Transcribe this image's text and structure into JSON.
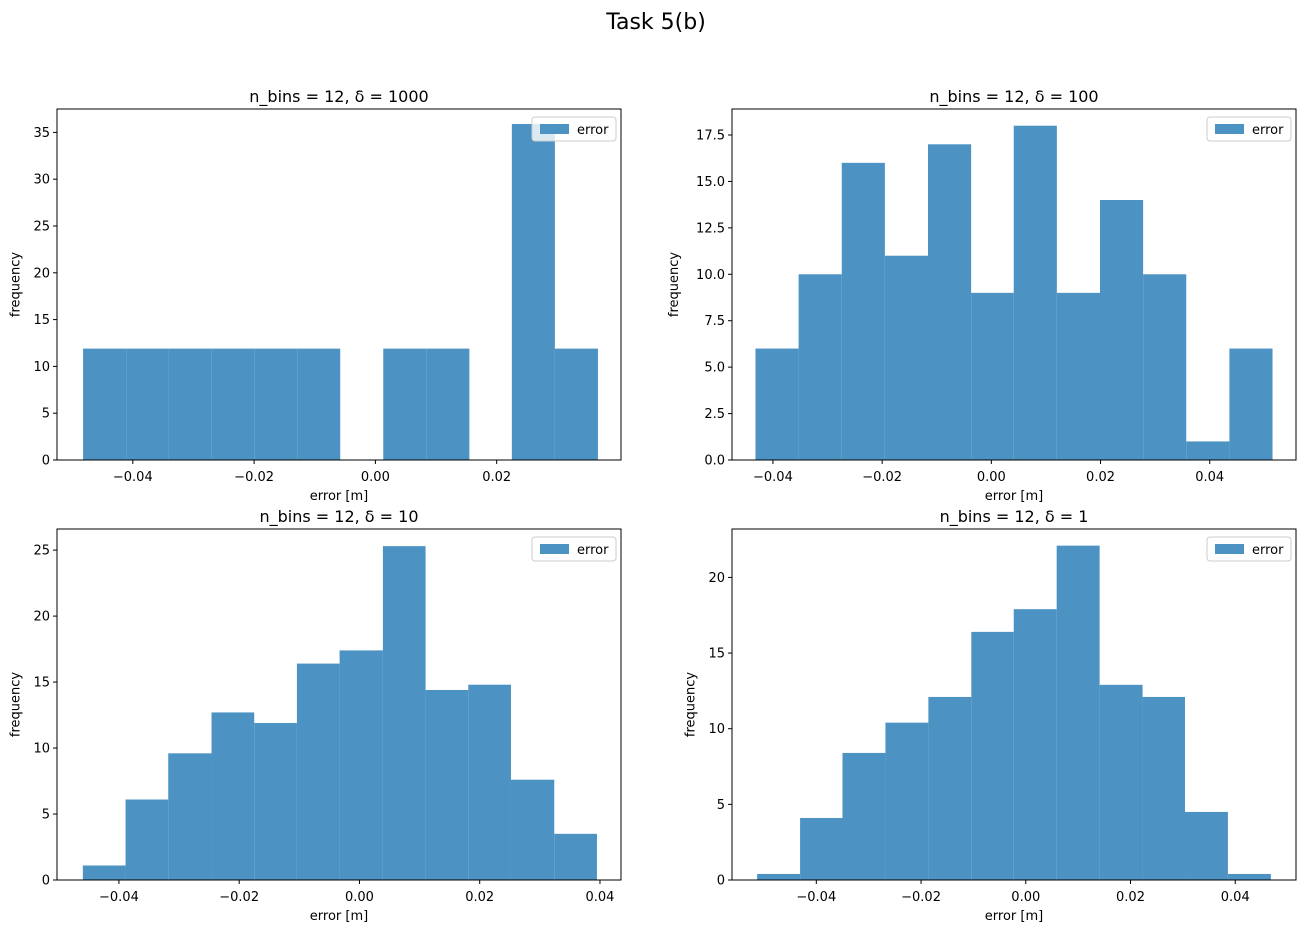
{
  "figure_title": "Task 5(b)",
  "colors": {
    "bar": "#4C93C3",
    "axis": "#000000",
    "legend_border": "#cccccc"
  },
  "chart_data": [
    {
      "type": "bar",
      "title": "n_bins = 12,  δ = 1000",
      "xlabel": "error [m]",
      "ylabel": "frequency",
      "legend": [
        "error"
      ],
      "legend_placement": "upper-right",
      "grid": false,
      "xlim": [
        -0.0525,
        0.0405
      ],
      "ylim": [
        0,
        37.5
      ],
      "xticks": [
        -0.04,
        -0.02,
        0.0,
        0.02
      ],
      "xticklabels": [
        "−0.04",
        "−0.02",
        "0.00",
        "0.02"
      ],
      "yticks": [
        0,
        5,
        10,
        15,
        20,
        25,
        30,
        35
      ],
      "yticklabels": [
        "0",
        "5",
        "10",
        "15",
        "20",
        "25",
        "30",
        "35"
      ],
      "bin_edges": [
        -0.0482,
        -0.0411,
        -0.0341,
        -0.027,
        -0.0199,
        -0.0128,
        -0.0058,
        0.0013,
        0.0084,
        0.0155,
        0.0225,
        0.0296,
        0.0367
      ],
      "values": [
        11.9,
        11.9,
        11.9,
        11.9,
        11.9,
        11.9,
        0,
        11.9,
        11.9,
        0,
        35.9,
        11.9
      ]
    },
    {
      "type": "bar",
      "title": "n_bins = 12,  δ = 100",
      "xlabel": "error [m]",
      "ylabel": "frequency",
      "legend": [
        "error"
      ],
      "legend_placement": "upper-right",
      "grid": false,
      "xlim": [
        -0.0475,
        0.0558
      ],
      "ylim": [
        0,
        18.9
      ],
      "xticks": [
        -0.04,
        -0.02,
        0.0,
        0.02,
        0.04
      ],
      "xticklabels": [
        "−0.04",
        "−0.02",
        "0.00",
        "0.02",
        "0.04"
      ],
      "yticks": [
        0,
        2.5,
        5.0,
        7.5,
        10.0,
        12.5,
        15.0,
        17.5
      ],
      "yticklabels": [
        "0.0",
        "2.5",
        "5.0",
        "7.5",
        "10.0",
        "12.5",
        "15.0",
        "17.5"
      ],
      "bin_edges": [
        -0.0432,
        -0.0353,
        -0.0274,
        -0.0195,
        -0.0116,
        -0.0037,
        0.0041,
        0.012,
        0.0199,
        0.0278,
        0.0357,
        0.0436,
        0.0515
      ],
      "values": [
        6,
        10,
        16,
        11,
        17,
        9,
        18,
        9,
        14,
        10,
        1,
        6
      ]
    },
    {
      "type": "bar",
      "title": "n_bins = 12,  δ = 10",
      "xlabel": "error [m]",
      "ylabel": "frequency",
      "legend": [
        "error"
      ],
      "legend_placement": "upper-right",
      "grid": false,
      "xlim": [
        -0.0503,
        0.0435
      ],
      "ylim": [
        0,
        26.6
      ],
      "xticks": [
        -0.04,
        -0.02,
        0.0,
        0.02,
        0.04
      ],
      "xticklabels": [
        "−0.04",
        "−0.02",
        "0.00",
        "0.02",
        "0.04"
      ],
      "yticks": [
        0,
        5,
        10,
        15,
        20,
        25
      ],
      "yticklabels": [
        "0",
        "5",
        "10",
        "15",
        "20",
        "25"
      ],
      "bin_edges": [
        -0.046,
        -0.0389,
        -0.0318,
        -0.0246,
        -0.0175,
        -0.0104,
        -0.0033,
        0.0039,
        0.011,
        0.0181,
        0.0252,
        0.0324,
        0.0395
      ],
      "values": [
        1.1,
        6.1,
        9.6,
        12.7,
        11.9,
        16.4,
        17.4,
        25.3,
        14.4,
        14.8,
        7.6,
        3.5
      ]
    },
    {
      "type": "bar",
      "title": "n_bins = 12,  δ = 1",
      "xlabel": "error [m]",
      "ylabel": "frequency",
      "legend": [
        "error"
      ],
      "legend_placement": "upper-right",
      "grid": false,
      "xlim": [
        -0.0561,
        0.0516
      ],
      "ylim": [
        0,
        23.2
      ],
      "xticks": [
        -0.04,
        -0.02,
        0.0,
        0.02,
        0.04
      ],
      "xticklabels": [
        "−0.04",
        "−0.02",
        "0.00",
        "0.02",
        "0.04"
      ],
      "yticks": [
        0,
        5,
        10,
        15,
        20
      ],
      "yticklabels": [
        "0",
        "5",
        "10",
        "15",
        "20"
      ],
      "bin_edges": [
        -0.0513,
        -0.0431,
        -0.035,
        -0.0268,
        -0.0186,
        -0.0104,
        -0.0023,
        0.0059,
        0.0141,
        0.0223,
        0.0304,
        0.0386,
        0.0468
      ],
      "values": [
        0.4,
        4.1,
        8.4,
        10.4,
        12.1,
        16.4,
        17.9,
        22.1,
        12.9,
        12.1,
        4.5,
        0.4
      ]
    }
  ]
}
